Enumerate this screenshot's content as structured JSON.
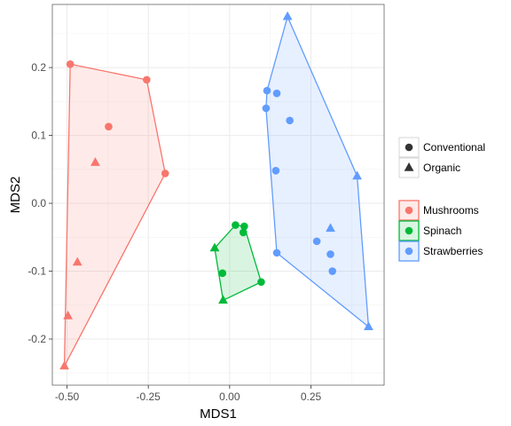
{
  "chart_data": {
    "type": "scatter",
    "xlabel": "MDS1",
    "ylabel": "MDS2",
    "xlim": [
      -0.545,
      0.475
    ],
    "ylim": [
      -0.268,
      0.293
    ],
    "x_ticks": [
      -0.5,
      -0.25,
      0.0,
      0.25
    ],
    "x_tick_labels": [
      "-0.50",
      "-0.25",
      "0.00",
      "0.25"
    ],
    "y_ticks": [
      -0.2,
      -0.1,
      0.0,
      0.1,
      0.2
    ],
    "y_tick_labels": [
      "-0.2",
      "-0.1",
      "0.0",
      "0.1",
      "0.2"
    ],
    "grid": true,
    "legend_position": "right",
    "shape_legend": [
      {
        "label": "Conventional",
        "shape": "circle"
      },
      {
        "label": "Organic",
        "shape": "triangle"
      }
    ],
    "color_legend": [
      {
        "label": "Mushrooms",
        "color": "#F8766D"
      },
      {
        "label": "Spinach",
        "color": "#00BA38"
      },
      {
        "label": "Strawberries",
        "color": "#619CFF"
      }
    ],
    "groups": [
      {
        "name": "Mushrooms",
        "color": "#F8766D",
        "hull": [
          [
            -0.49,
            0.205
          ],
          [
            -0.255,
            0.182
          ],
          [
            -0.198,
            0.044
          ],
          [
            -0.508,
            -0.24
          ]
        ],
        "points": [
          {
            "x": -0.49,
            "y": 0.205,
            "shape": "circle"
          },
          {
            "x": -0.255,
            "y": 0.182,
            "shape": "circle"
          },
          {
            "x": -0.372,
            "y": 0.113,
            "shape": "circle"
          },
          {
            "x": -0.198,
            "y": 0.044,
            "shape": "circle"
          },
          {
            "x": -0.413,
            "y": 0.06,
            "shape": "triangle"
          },
          {
            "x": -0.468,
            "y": -0.087,
            "shape": "triangle"
          },
          {
            "x": -0.497,
            "y": -0.166,
            "shape": "triangle"
          },
          {
            "x": -0.508,
            "y": -0.24,
            "shape": "triangle"
          }
        ]
      },
      {
        "name": "Spinach",
        "color": "#00BA38",
        "hull": [
          [
            -0.046,
            -0.066
          ],
          [
            0.018,
            -0.032
          ],
          [
            0.045,
            -0.034
          ],
          [
            0.097,
            -0.116
          ],
          [
            -0.02,
            -0.143
          ]
        ],
        "points": [
          {
            "x": 0.018,
            "y": -0.032,
            "shape": "circle"
          },
          {
            "x": 0.045,
            "y": -0.034,
            "shape": "circle"
          },
          {
            "x": 0.042,
            "y": -0.043,
            "shape": "circle"
          },
          {
            "x": -0.022,
            "y": -0.103,
            "shape": "circle"
          },
          {
            "x": 0.097,
            "y": -0.116,
            "shape": "circle"
          },
          {
            "x": -0.046,
            "y": -0.066,
            "shape": "triangle"
          },
          {
            "x": -0.02,
            "y": -0.143,
            "shape": "triangle"
          }
        ]
      },
      {
        "name": "Strawberries",
        "color": "#619CFF",
        "hull": [
          [
            0.178,
            0.275
          ],
          [
            0.392,
            0.04
          ],
          [
            0.427,
            -0.182
          ],
          [
            0.145,
            -0.073
          ],
          [
            0.112,
            0.14
          ],
          [
            0.115,
            0.166
          ]
        ],
        "points": [
          {
            "x": 0.115,
            "y": 0.166,
            "shape": "circle"
          },
          {
            "x": 0.145,
            "y": 0.162,
            "shape": "circle"
          },
          {
            "x": 0.112,
            "y": 0.14,
            "shape": "circle"
          },
          {
            "x": 0.185,
            "y": 0.122,
            "shape": "circle"
          },
          {
            "x": 0.142,
            "y": 0.048,
            "shape": "circle"
          },
          {
            "x": 0.268,
            "y": -0.056,
            "shape": "circle"
          },
          {
            "x": 0.31,
            "y": -0.075,
            "shape": "circle"
          },
          {
            "x": 0.145,
            "y": -0.073,
            "shape": "circle"
          },
          {
            "x": 0.316,
            "y": -0.1,
            "shape": "circle"
          },
          {
            "x": 0.178,
            "y": 0.275,
            "shape": "triangle"
          },
          {
            "x": 0.392,
            "y": 0.04,
            "shape": "triangle"
          },
          {
            "x": 0.31,
            "y": -0.037,
            "shape": "triangle"
          },
          {
            "x": 0.427,
            "y": -0.182,
            "shape": "triangle"
          }
        ]
      }
    ]
  }
}
